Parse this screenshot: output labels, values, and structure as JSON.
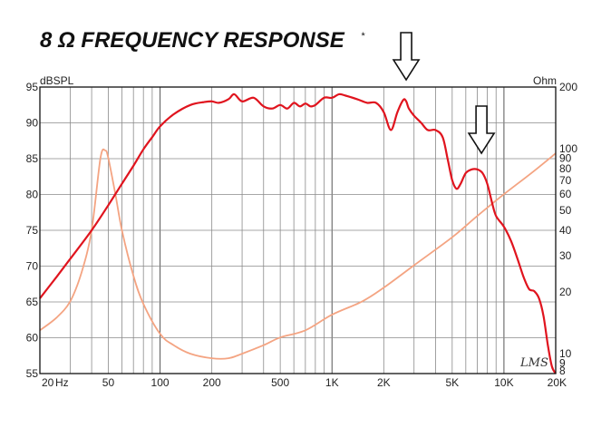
{
  "chart_data": {
    "type": "line",
    "title": "8 Ω FREQUENCY RESPONSE",
    "title_mark": "*",
    "ylabel": "dBSPL",
    "ylabel_right": "Ohm",
    "xscale": "log",
    "xlim": [
      20,
      20000
    ],
    "ylim": [
      55,
      95
    ],
    "y2scale": "log",
    "y2lim": [
      8,
      200
    ],
    "grid": true,
    "x_ticks": [
      {
        "value": 20,
        "label": "20"
      },
      {
        "value": 50,
        "label": "50"
      },
      {
        "value": 100,
        "label": "100"
      },
      {
        "value": 200,
        "label": "200"
      },
      {
        "value": 500,
        "label": "500"
      },
      {
        "value": 1000,
        "label": "1K"
      },
      {
        "value": 2000,
        "label": "2K"
      },
      {
        "value": 5000,
        "label": "5K"
      },
      {
        "value": 10000,
        "label": "10K"
      },
      {
        "value": 20000,
        "label": "20K"
      }
    ],
    "x_unit_label": "Hz",
    "y_ticks": [
      {
        "value": 95,
        "label": "95"
      },
      {
        "value": 90,
        "label": "90"
      },
      {
        "value": 85,
        "label": "85"
      },
      {
        "value": 80,
        "label": "80"
      },
      {
        "value": 75,
        "label": "75"
      },
      {
        "value": 70,
        "label": "70"
      },
      {
        "value": 65,
        "label": "65"
      },
      {
        "value": 60,
        "label": "60"
      },
      {
        "value": 55,
        "label": "55"
      }
    ],
    "y2_ticks": [
      {
        "value": 200,
        "label": "200"
      },
      {
        "value": 100,
        "label": "100"
      },
      {
        "value": 90,
        "label": "90"
      },
      {
        "value": 80,
        "label": "80"
      },
      {
        "value": 70,
        "label": "70"
      },
      {
        "value": 60,
        "label": "60"
      },
      {
        "value": 50,
        "label": "50"
      },
      {
        "value": 40,
        "label": "40"
      },
      {
        "value": 30,
        "label": "30"
      },
      {
        "value": 20,
        "label": "20"
      },
      {
        "value": 10,
        "label": "10"
      },
      {
        "value": 9,
        "label": "9"
      },
      {
        "value": 8,
        "label": "8"
      }
    ],
    "series": [
      {
        "axis": "left",
        "color": "#e0141e",
        "x": [
          20,
          25,
          30,
          40,
          50,
          60,
          70,
          80,
          90,
          100,
          120,
          150,
          180,
          200,
          220,
          250,
          270,
          300,
          350,
          400,
          450,
          500,
          550,
          600,
          650,
          700,
          750,
          800,
          900,
          1000,
          1100,
          1200,
          1400,
          1600,
          1800,
          2000,
          2200,
          2400,
          2600,
          2700,
          2800,
          3000,
          3300,
          3600,
          4000,
          4400,
          4700,
          5000,
          5300,
          5600,
          6000,
          6500,
          7000,
          7500,
          8000,
          8500,
          9000,
          10000,
          11000,
          12000,
          13000,
          14000,
          15000,
          16000,
          17000,
          18000,
          19000,
          20000
        ],
        "values": [
          65.5,
          68.5,
          71.0,
          75.0,
          78.5,
          81.5,
          84.0,
          86.3,
          88.0,
          89.5,
          91.2,
          92.5,
          92.9,
          93.0,
          92.8,
          93.3,
          94.0,
          93.0,
          93.5,
          92.3,
          92.0,
          92.5,
          92.0,
          92.8,
          92.3,
          92.7,
          92.3,
          92.5,
          93.5,
          93.5,
          94.0,
          93.8,
          93.3,
          92.8,
          92.8,
          91.5,
          89.0,
          91.5,
          93.2,
          93.0,
          92.0,
          91.0,
          90.0,
          89.0,
          89.0,
          88.0,
          85.0,
          82.0,
          80.8,
          81.5,
          83.0,
          83.5,
          83.5,
          83.0,
          81.5,
          79.0,
          77.0,
          75.5,
          73.5,
          71.0,
          68.5,
          66.8,
          66.5,
          65.5,
          63.0,
          59.0,
          56.0,
          55.0
        ]
      },
      {
        "axis": "right",
        "color": "#f4a482",
        "x": [
          20,
          25,
          30,
          35,
          40,
          45,
          48,
          50,
          55,
          60,
          70,
          80,
          100,
          120,
          150,
          200,
          250,
          300,
          400,
          500,
          700,
          1000,
          1500,
          2000,
          3000,
          5000,
          7000,
          10000,
          15000,
          20000
        ],
        "values": [
          13,
          15,
          18,
          25,
          40,
          90,
          98,
          90,
          60,
          40,
          24,
          17.5,
          12.5,
          11,
          10,
          9.5,
          9.5,
          10,
          11,
          12,
          13,
          15.5,
          18,
          21,
          27,
          37,
          47,
          60,
          78,
          95
        ]
      }
    ],
    "annotations": [
      {
        "type": "arrow",
        "x": 2700,
        "direction": "down",
        "label": ""
      },
      {
        "type": "arrow",
        "x": 7400,
        "direction": "down",
        "label": ""
      }
    ],
    "watermark_text": "LMS"
  }
}
